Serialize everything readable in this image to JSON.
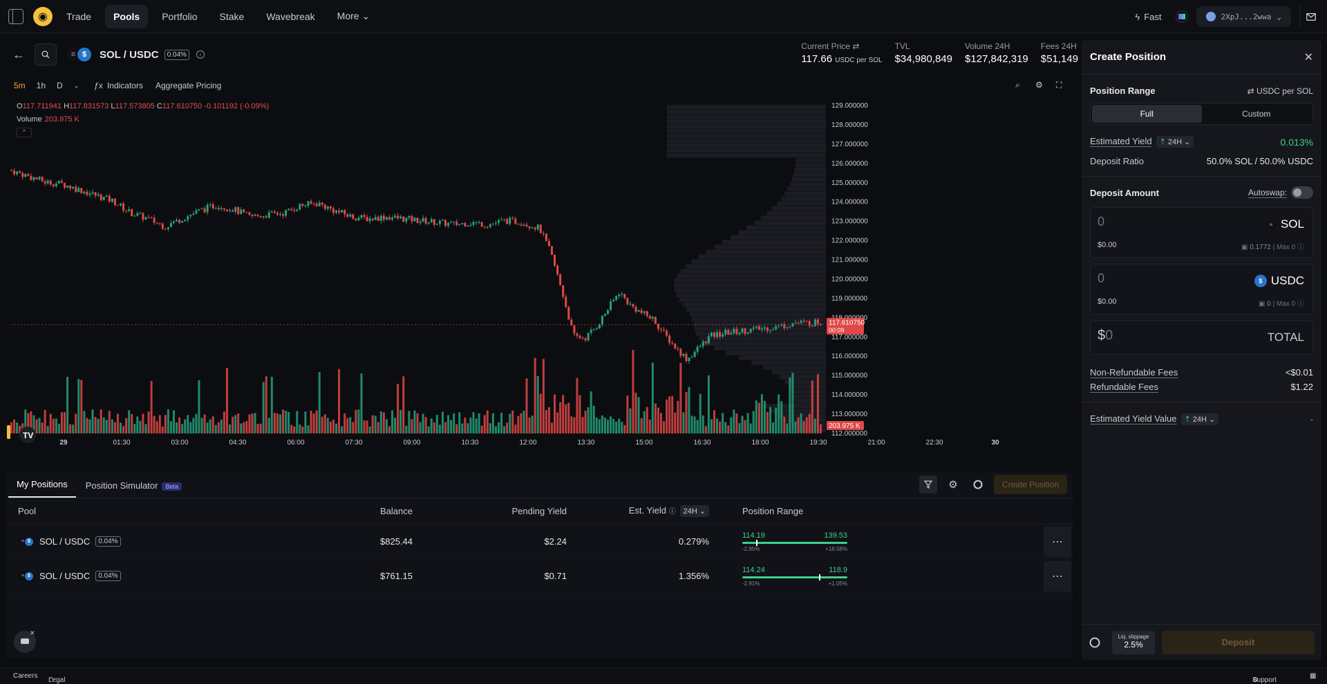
{
  "nav": {
    "items": [
      "Trade",
      "Pools",
      "Portfolio",
      "Stake",
      "Wavebreak",
      "More"
    ],
    "active": "Pools",
    "fast_label": "Fast",
    "wallet": "2XpJ...2wwa"
  },
  "pair": {
    "name": "SOL / USDC",
    "fee": "0.04%",
    "stats": [
      {
        "label": "Current Price",
        "value": "117.66",
        "unit": "USDC per SOL"
      },
      {
        "label": "TVL",
        "value": "$34,980,849",
        "unit": ""
      },
      {
        "label": "Volume 24H",
        "value": "$127,842,319",
        "unit": ""
      },
      {
        "label": "Fees 24H",
        "value": "$51,149",
        "unit": ""
      }
    ]
  },
  "chart_tools": {
    "timeframes": [
      "5m",
      "1h",
      "D"
    ],
    "active_timeframe": "5m",
    "indicators": "Indicators",
    "aggregate": "Aggregate Pricing"
  },
  "chart_data": {
    "type": "candlestick",
    "ohlc": {
      "o": "117.711941",
      "h": "117.831573",
      "l": "117.573805",
      "c": "117.610750",
      "chg": "-0.101192 (-0.09%)"
    },
    "volume_label": "Volume",
    "volume_value": "203.975 K",
    "y_ticks": [
      "129.000000",
      "128.000000",
      "127.000000",
      "126.000000",
      "125.000000",
      "124.000000",
      "123.000000",
      "122.000000",
      "121.000000",
      "120.000000",
      "119.000000",
      "118.000000",
      "117.000000",
      "116.000000",
      "115.000000",
      "114.000000",
      "113.000000",
      "112.000000"
    ],
    "x_ticks": [
      "29",
      "01:30",
      "03:00",
      "04:30",
      "06:00",
      "07:30",
      "09:00",
      "10:30",
      "12:00",
      "13:30",
      "15:00",
      "16:30",
      "18:00",
      "19:30",
      "21:00",
      "22:30",
      "30"
    ],
    "last_price_tag": "117.610750",
    "last_price_timer": "00:09",
    "volume_tag": "203.975 K",
    "ylim": [
      112,
      129
    ],
    "close_path": [
      [
        0,
        125.6
      ],
      [
        30,
        125.3
      ],
      [
        60,
        125.0
      ],
      [
        90,
        124.9
      ],
      [
        120,
        124.6
      ],
      [
        150,
        124.3
      ],
      [
        180,
        124.0
      ],
      [
        210,
        123.4
      ],
      [
        240,
        123.1
      ],
      [
        270,
        122.7
      ],
      [
        300,
        123.1
      ],
      [
        330,
        123.5
      ],
      [
        360,
        123.8
      ],
      [
        390,
        123.6
      ],
      [
        420,
        123.2
      ],
      [
        450,
        123.3
      ],
      [
        480,
        123.4
      ],
      [
        510,
        123.8
      ],
      [
        540,
        123.9
      ],
      [
        570,
        123.5
      ],
      [
        600,
        123.2
      ],
      [
        630,
        123.1
      ],
      [
        660,
        123.2
      ],
      [
        690,
        123.1
      ],
      [
        720,
        123.0
      ],
      [
        750,
        122.9
      ],
      [
        780,
        122.8
      ],
      [
        810,
        122.9
      ],
      [
        840,
        122.8
      ],
      [
        870,
        123.0
      ],
      [
        900,
        122.9
      ],
      [
        930,
        122.6
      ],
      [
        950,
        121.3
      ],
      [
        970,
        119.3
      ],
      [
        990,
        117.0
      ],
      [
        1010,
        116.9
      ],
      [
        1030,
        117.5
      ],
      [
        1050,
        118.4
      ],
      [
        1070,
        119.3
      ],
      [
        1090,
        118.6
      ],
      [
        1110,
        118.2
      ],
      [
        1130,
        117.9
      ],
      [
        1150,
        117.1
      ],
      [
        1170,
        116.4
      ],
      [
        1190,
        115.8
      ],
      [
        1210,
        116.4
      ],
      [
        1230,
        117.0
      ],
      [
        1260,
        117.2
      ],
      [
        1290,
        117.3
      ],
      [
        1320,
        117.4
      ],
      [
        1350,
        117.5
      ],
      [
        1380,
        117.7
      ],
      [
        1410,
        117.7
      ],
      [
        1430,
        117.8
      ]
    ]
  },
  "positions": {
    "tabs": [
      "My Positions",
      "Position Simulator"
    ],
    "beta": "Beta",
    "create_label": "Create Position",
    "headers": {
      "pool": "Pool",
      "balance": "Balance",
      "pending": "Pending Yield",
      "est": "Est. Yield",
      "period": "24H",
      "range": "Position Range"
    },
    "rows": [
      {
        "pool": "SOL / USDC",
        "fee": "0.04%",
        "balance": "$825.44",
        "pending": "$2.24",
        "est": "0.279%",
        "low": "114.19",
        "high": "139.53",
        "low_pct": "-2.95%",
        "high_pct": "+18.58%",
        "marker": 0.13
      },
      {
        "pool": "SOL / USDC",
        "fee": "0.04%",
        "balance": "$761.15",
        "pending": "$0.71",
        "est": "1.356%",
        "low": "114.24",
        "high": "118.9",
        "low_pct": "-2.91%",
        "high_pct": "+1.05%",
        "marker": 0.73
      }
    ]
  },
  "side": {
    "title": "Create Position",
    "range_title": "Position Range",
    "range_unit": "USDC per SOL",
    "seg": [
      "Full",
      "Custom"
    ],
    "est_yield_label": "Estimated Yield",
    "est_period": "24H",
    "est_yield_value": "0.013%",
    "ratio_label": "Deposit Ratio",
    "ratio_value": "50.0% SOL / 50.0% USDC",
    "deposit_title": "Deposit Amount",
    "autoswap": "Autoswap:",
    "sol": {
      "amount": "0",
      "token": "SOL",
      "usd": "$0.00",
      "bal": "0.1772",
      "max": "Max 0"
    },
    "usdc": {
      "amount": "0",
      "token": "USDC",
      "usd": "$0.00",
      "bal": "0",
      "max": "Max 0"
    },
    "total_sign": "$",
    "total_amount": "0",
    "total_label": "TOTAL",
    "nonref_label": "Non-Refundable Fees",
    "nonref_value": "<$0.01",
    "ref_label": "Refundable Fees",
    "ref_value": "$1.22",
    "eyv_label": "Estimated Yield Value",
    "eyv_period": "24H",
    "eyv_value": "-",
    "slip_label": "Liq. slippage",
    "slip_value": "2.5%",
    "deposit_btn": "Deposit"
  },
  "footer": {
    "careers": "Careers",
    "legal": "Legal",
    "support": "Support"
  },
  "colors": {
    "up": "#26a17b",
    "down": "#e04848",
    "accent": "#f3c23b",
    "yield": "#3fcf8e"
  }
}
